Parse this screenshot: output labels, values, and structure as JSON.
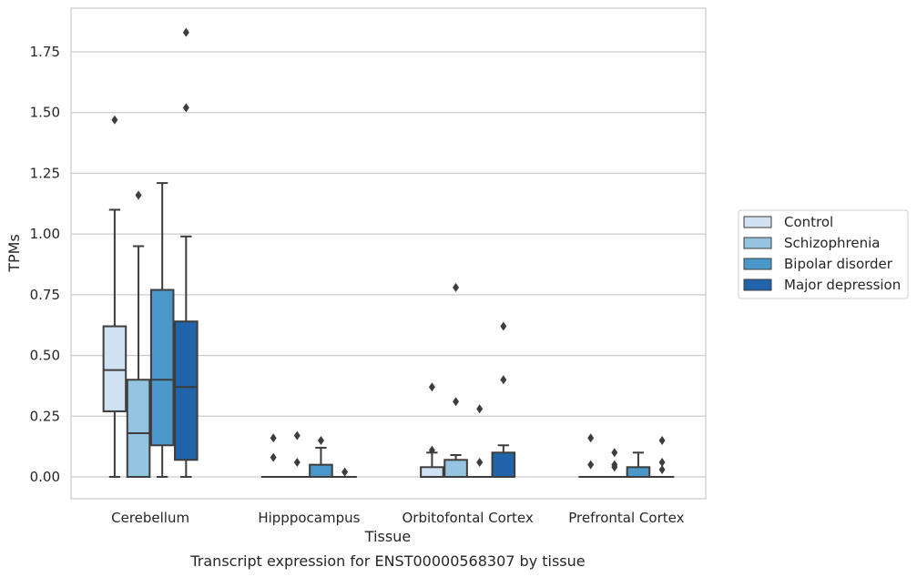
{
  "chart_data": {
    "type": "box",
    "title": "",
    "caption": "Transcript expression for ENST00000568307 by tissue",
    "xlabel": "Tissue",
    "ylabel": "TPMs",
    "ylim": [
      -0.09,
      1.93
    ],
    "yticks": [
      "0.00",
      "0.25",
      "0.50",
      "0.75",
      "1.00",
      "1.25",
      "1.50",
      "1.75"
    ],
    "ytick_values": [
      0,
      0.25,
      0.5,
      0.75,
      1.0,
      1.25,
      1.5,
      1.75
    ],
    "grid": true,
    "legend_placement": "right",
    "categories": [
      "Cerebellum",
      "Hipppocampus",
      "Orbitofontal Cortex",
      "Prefrontal Cortex"
    ],
    "series": [
      {
        "name": "Control",
        "color": "#d0e1f2",
        "boxes": [
          {
            "q1": 0.27,
            "median": 0.44,
            "q3": 0.62,
            "whislo": 0.0,
            "whishi": 1.1,
            "fliers": [
              1.47
            ]
          },
          {
            "q1": 0.0,
            "median": 0.0,
            "q3": 0.0,
            "whislo": 0.0,
            "whishi": 0.0,
            "fliers": [
              0.16,
              0.08
            ]
          },
          {
            "q1": 0.0,
            "median": 0.0,
            "q3": 0.04,
            "whislo": 0.0,
            "whishi": 0.1,
            "fliers": [
              0.37,
              0.11
            ]
          },
          {
            "q1": 0.0,
            "median": 0.0,
            "q3": 0.0,
            "whislo": 0.0,
            "whishi": 0.0,
            "fliers": [
              0.16,
              0.05
            ]
          }
        ]
      },
      {
        "name": "Schizophrenia",
        "color": "#94c4df",
        "boxes": [
          {
            "q1": 0.0,
            "median": 0.18,
            "q3": 0.4,
            "whislo": 0.0,
            "whishi": 0.95,
            "fliers": [
              1.16
            ]
          },
          {
            "q1": 0.0,
            "median": 0.0,
            "q3": 0.0,
            "whislo": 0.0,
            "whishi": 0.0,
            "fliers": [
              0.17,
              0.06
            ]
          },
          {
            "q1": 0.0,
            "median": 0.0,
            "q3": 0.07,
            "whislo": 0.0,
            "whishi": 0.09,
            "fliers": [
              0.78,
              0.31
            ]
          },
          {
            "q1": 0.0,
            "median": 0.0,
            "q3": 0.0,
            "whislo": 0.0,
            "whishi": 0.0,
            "fliers": [
              0.1,
              0.05,
              0.04
            ]
          }
        ]
      },
      {
        "name": "Bipolar disorder",
        "color": "#4a98c9",
        "boxes": [
          {
            "q1": 0.13,
            "median": 0.4,
            "q3": 0.77,
            "whislo": 0.0,
            "whishi": 1.21,
            "fliers": []
          },
          {
            "q1": 0.0,
            "median": 0.0,
            "q3": 0.05,
            "whislo": 0.0,
            "whishi": 0.12,
            "fliers": [
              0.15
            ]
          },
          {
            "q1": 0.0,
            "median": 0.0,
            "q3": 0.0,
            "whislo": 0.0,
            "whishi": 0.0,
            "fliers": [
              0.28,
              0.06
            ]
          },
          {
            "q1": 0.0,
            "median": 0.0,
            "q3": 0.04,
            "whislo": 0.0,
            "whishi": 0.1,
            "fliers": []
          }
        ]
      },
      {
        "name": "Major depression",
        "color": "#2164ab",
        "boxes": [
          {
            "q1": 0.07,
            "median": 0.37,
            "q3": 0.64,
            "whislo": 0.0,
            "whishi": 0.99,
            "fliers": [
              1.83,
              1.52
            ]
          },
          {
            "q1": 0.0,
            "median": 0.0,
            "q3": 0.0,
            "whislo": 0.0,
            "whishi": 0.0,
            "fliers": [
              0.02
            ]
          },
          {
            "q1": 0.0,
            "median": 0.0,
            "q3": 0.1,
            "whislo": 0.0,
            "whishi": 0.13,
            "fliers": [
              0.62,
              0.4
            ]
          },
          {
            "q1": 0.0,
            "median": 0.0,
            "q3": 0.0,
            "whislo": 0.0,
            "whishi": 0.0,
            "fliers": [
              0.15,
              0.06,
              0.03
            ]
          }
        ]
      }
    ]
  }
}
